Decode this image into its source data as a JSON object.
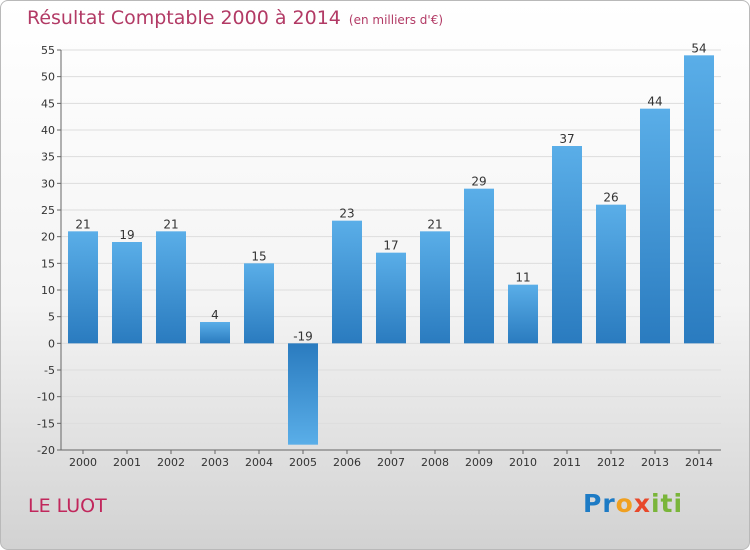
{
  "title": "Résultat Comptable 2000 à 2014",
  "subtitle": "(en milliers d'€)",
  "commune": "LE LUOT",
  "logo": {
    "text": "Proxiti",
    "parts": [
      "Pr",
      "o",
      "x",
      "iti"
    ]
  },
  "colors": {
    "bar_light": "#5aaee8",
    "bar_dark": "#2a7bbf",
    "title": "#b23a65",
    "commune": "#c1275c",
    "grid": "#dddddd"
  },
  "chart_data": {
    "type": "bar",
    "title": "Résultat Comptable 2000 à 2014",
    "subtitle": "(en milliers d'€)",
    "xlabel": "",
    "ylabel": "",
    "categories": [
      "2000",
      "2001",
      "2002",
      "2003",
      "2004",
      "2005",
      "2006",
      "2007",
      "2008",
      "2009",
      "2010",
      "2011",
      "2012",
      "2013",
      "2014"
    ],
    "values": [
      21,
      19,
      21,
      4,
      15,
      -19,
      23,
      17,
      21,
      29,
      11,
      37,
      26,
      44,
      54
    ],
    "ylim": [
      -20,
      55
    ],
    "yticks": [
      -20,
      -15,
      -10,
      -5,
      0,
      5,
      10,
      15,
      20,
      25,
      30,
      35,
      40,
      45,
      50,
      55
    ],
    "grid": true
  }
}
